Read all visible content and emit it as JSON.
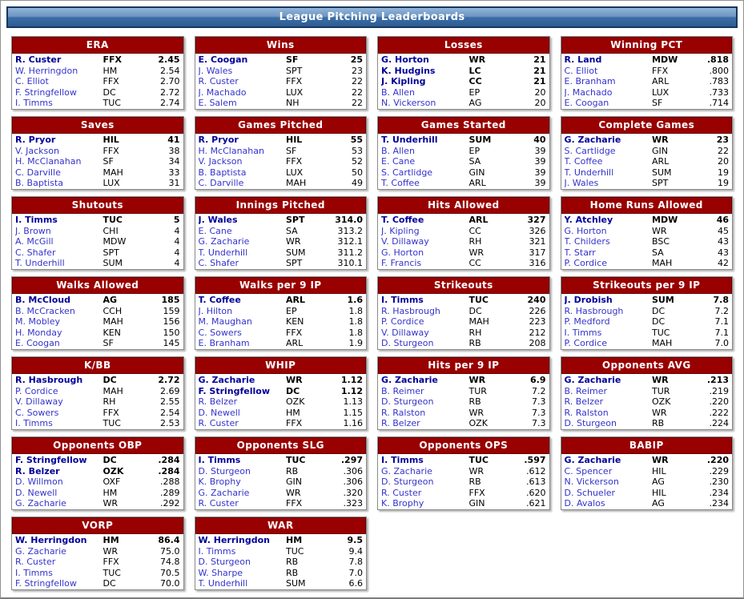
{
  "header": {
    "title": "League Pitching Leaderboards"
  },
  "colors": {
    "panel_header_red": "#990000",
    "titlebar_blue_top": "#93b4d8",
    "titlebar_blue_bottom": "#2d5c92",
    "titlebar_border": "#17375e",
    "player_link_blue": "#3333cc",
    "leader_navy": "#000099",
    "text_black": "#000000",
    "panel_border_gray": "#8a8a8a"
  },
  "boards": [
    {
      "title": "ERA",
      "rows": [
        {
          "player": "R. Custer",
          "team": "FFX",
          "value": "2.45",
          "leader": true
        },
        {
          "player": "W. Herringdon",
          "team": "HM",
          "value": "2.54",
          "leader": false
        },
        {
          "player": "C. Elliot",
          "team": "FFX",
          "value": "2.70",
          "leader": false
        },
        {
          "player": "F. Stringfellow",
          "team": "DC",
          "value": "2.72",
          "leader": false
        },
        {
          "player": "I. Timms",
          "team": "TUC",
          "value": "2.74",
          "leader": false
        }
      ]
    },
    {
      "title": "Wins",
      "rows": [
        {
          "player": "E. Coogan",
          "team": "SF",
          "value": "25",
          "leader": true
        },
        {
          "player": "J. Wales",
          "team": "SPT",
          "value": "23",
          "leader": false
        },
        {
          "player": "R. Custer",
          "team": "FFX",
          "value": "22",
          "leader": false
        },
        {
          "player": "J. Machado",
          "team": "LUX",
          "value": "22",
          "leader": false
        },
        {
          "player": "E. Salem",
          "team": "NH",
          "value": "22",
          "leader": false
        }
      ]
    },
    {
      "title": "Losses",
      "rows": [
        {
          "player": "G. Horton",
          "team": "WR",
          "value": "21",
          "leader": true
        },
        {
          "player": "K. Hudgins",
          "team": "LC",
          "value": "21",
          "leader": true
        },
        {
          "player": "J. Kipling",
          "team": "CC",
          "value": "21",
          "leader": true
        },
        {
          "player": "B. Allen",
          "team": "EP",
          "value": "20",
          "leader": false
        },
        {
          "player": "N. Vickerson",
          "team": "AG",
          "value": "20",
          "leader": false
        }
      ]
    },
    {
      "title": "Winning PCT",
      "rows": [
        {
          "player": "R. Land",
          "team": "MDW",
          "value": ".818",
          "leader": true
        },
        {
          "player": "C. Elliot",
          "team": "FFX",
          "value": ".800",
          "leader": false
        },
        {
          "player": "E. Branham",
          "team": "ARL",
          "value": ".783",
          "leader": false
        },
        {
          "player": "J. Machado",
          "team": "LUX",
          "value": ".733",
          "leader": false
        },
        {
          "player": "E. Coogan",
          "team": "SF",
          "value": ".714",
          "leader": false
        }
      ]
    },
    {
      "title": "Saves",
      "rows": [
        {
          "player": "R. Pryor",
          "team": "HIL",
          "value": "41",
          "leader": true
        },
        {
          "player": "V. Jackson",
          "team": "FFX",
          "value": "38",
          "leader": false
        },
        {
          "player": "H. McClanahan",
          "team": "SF",
          "value": "34",
          "leader": false
        },
        {
          "player": "C. Darville",
          "team": "MAH",
          "value": "33",
          "leader": false
        },
        {
          "player": "B. Baptista",
          "team": "LUX",
          "value": "31",
          "leader": false
        }
      ]
    },
    {
      "title": "Games Pitched",
      "rows": [
        {
          "player": "R. Pryor",
          "team": "HIL",
          "value": "55",
          "leader": true
        },
        {
          "player": "H. McClanahan",
          "team": "SF",
          "value": "53",
          "leader": false
        },
        {
          "player": "V. Jackson",
          "team": "FFX",
          "value": "52",
          "leader": false
        },
        {
          "player": "B. Baptista",
          "team": "LUX",
          "value": "50",
          "leader": false
        },
        {
          "player": "C. Darville",
          "team": "MAH",
          "value": "49",
          "leader": false
        }
      ]
    },
    {
      "title": "Games Started",
      "rows": [
        {
          "player": "T. Underhill",
          "team": "SUM",
          "value": "40",
          "leader": true
        },
        {
          "player": "B. Allen",
          "team": "EP",
          "value": "39",
          "leader": false
        },
        {
          "player": "E. Cane",
          "team": "SA",
          "value": "39",
          "leader": false
        },
        {
          "player": "S. Cartlidge",
          "team": "GIN",
          "value": "39",
          "leader": false
        },
        {
          "player": "T. Coffee",
          "team": "ARL",
          "value": "39",
          "leader": false
        }
      ]
    },
    {
      "title": "Complete Games",
      "rows": [
        {
          "player": "G. Zacharie",
          "team": "WR",
          "value": "23",
          "leader": true
        },
        {
          "player": "S. Cartlidge",
          "team": "GIN",
          "value": "22",
          "leader": false
        },
        {
          "player": "T. Coffee",
          "team": "ARL",
          "value": "20",
          "leader": false
        },
        {
          "player": "T. Underhill",
          "team": "SUM",
          "value": "19",
          "leader": false
        },
        {
          "player": "J. Wales",
          "team": "SPT",
          "value": "19",
          "leader": false
        }
      ]
    },
    {
      "title": "Shutouts",
      "rows": [
        {
          "player": "I. Timms",
          "team": "TUC",
          "value": "5",
          "leader": true
        },
        {
          "player": "J. Brown",
          "team": "CHI",
          "value": "4",
          "leader": false
        },
        {
          "player": "A. McGill",
          "team": "MDW",
          "value": "4",
          "leader": false
        },
        {
          "player": "C. Shafer",
          "team": "SPT",
          "value": "4",
          "leader": false
        },
        {
          "player": "T. Underhill",
          "team": "SUM",
          "value": "4",
          "leader": false
        }
      ]
    },
    {
      "title": "Innings Pitched",
      "rows": [
        {
          "player": "J. Wales",
          "team": "SPT",
          "value": "314.0",
          "leader": true
        },
        {
          "player": "E. Cane",
          "team": "SA",
          "value": "313.2",
          "leader": false
        },
        {
          "player": "G. Zacharie",
          "team": "WR",
          "value": "312.1",
          "leader": false
        },
        {
          "player": "T. Underhill",
          "team": "SUM",
          "value": "311.2",
          "leader": false
        },
        {
          "player": "C. Shafer",
          "team": "SPT",
          "value": "310.1",
          "leader": false
        }
      ]
    },
    {
      "title": "Hits Allowed",
      "rows": [
        {
          "player": "T. Coffee",
          "team": "ARL",
          "value": "327",
          "leader": true
        },
        {
          "player": "J. Kipling",
          "team": "CC",
          "value": "326",
          "leader": false
        },
        {
          "player": "V. Dillaway",
          "team": "RH",
          "value": "321",
          "leader": false
        },
        {
          "player": "G. Horton",
          "team": "WR",
          "value": "317",
          "leader": false
        },
        {
          "player": "F. Francis",
          "team": "CC",
          "value": "316",
          "leader": false
        }
      ]
    },
    {
      "title": "Home Runs Allowed",
      "rows": [
        {
          "player": "Y. Atchley",
          "team": "MDW",
          "value": "46",
          "leader": true
        },
        {
          "player": "G. Horton",
          "team": "WR",
          "value": "45",
          "leader": false
        },
        {
          "player": "T. Childers",
          "team": "BSC",
          "value": "43",
          "leader": false
        },
        {
          "player": "T. Starr",
          "team": "SA",
          "value": "43",
          "leader": false
        },
        {
          "player": "P. Cordice",
          "team": "MAH",
          "value": "42",
          "leader": false
        }
      ]
    },
    {
      "title": "Walks Allowed",
      "rows": [
        {
          "player": "B. McCloud",
          "team": "AG",
          "value": "185",
          "leader": true
        },
        {
          "player": "B. McCracken",
          "team": "CCH",
          "value": "159",
          "leader": false
        },
        {
          "player": "M. Mobley",
          "team": "MAH",
          "value": "156",
          "leader": false
        },
        {
          "player": "H. Monday",
          "team": "KEN",
          "value": "150",
          "leader": false
        },
        {
          "player": "E. Coogan",
          "team": "SF",
          "value": "145",
          "leader": false
        }
      ]
    },
    {
      "title": "Walks per 9 IP",
      "rows": [
        {
          "player": "T. Coffee",
          "team": "ARL",
          "value": "1.6",
          "leader": true
        },
        {
          "player": "J. Hilton",
          "team": "EP",
          "value": "1.8",
          "leader": false
        },
        {
          "player": "M. Maughan",
          "team": "KEN",
          "value": "1.8",
          "leader": false
        },
        {
          "player": "C. Sowers",
          "team": "FFX",
          "value": "1.8",
          "leader": false
        },
        {
          "player": "E. Branham",
          "team": "ARL",
          "value": "1.9",
          "leader": false
        }
      ]
    },
    {
      "title": "Strikeouts",
      "rows": [
        {
          "player": "I. Timms",
          "team": "TUC",
          "value": "240",
          "leader": true
        },
        {
          "player": "R. Hasbrough",
          "team": "DC",
          "value": "226",
          "leader": false
        },
        {
          "player": "P. Cordice",
          "team": "MAH",
          "value": "223",
          "leader": false
        },
        {
          "player": "V. Dillaway",
          "team": "RH",
          "value": "212",
          "leader": false
        },
        {
          "player": "D. Sturgeon",
          "team": "RB",
          "value": "208",
          "leader": false
        }
      ]
    },
    {
      "title": "Strikeouts per 9 IP",
      "rows": [
        {
          "player": "J. Drobish",
          "team": "SUM",
          "value": "7.8",
          "leader": true
        },
        {
          "player": "R. Hasbrough",
          "team": "DC",
          "value": "7.2",
          "leader": false
        },
        {
          "player": "P. Medford",
          "team": "DC",
          "value": "7.1",
          "leader": false
        },
        {
          "player": "I. Timms",
          "team": "TUC",
          "value": "7.1",
          "leader": false
        },
        {
          "player": "P. Cordice",
          "team": "MAH",
          "value": "7.0",
          "leader": false
        }
      ]
    },
    {
      "title": "K/BB",
      "rows": [
        {
          "player": "R. Hasbrough",
          "team": "DC",
          "value": "2.72",
          "leader": true
        },
        {
          "player": "P. Cordice",
          "team": "MAH",
          "value": "2.69",
          "leader": false
        },
        {
          "player": "V. Dillaway",
          "team": "RH",
          "value": "2.55",
          "leader": false
        },
        {
          "player": "C. Sowers",
          "team": "FFX",
          "value": "2.54",
          "leader": false
        },
        {
          "player": "I. Timms",
          "team": "TUC",
          "value": "2.53",
          "leader": false
        }
      ]
    },
    {
      "title": "WHIP",
      "rows": [
        {
          "player": "G. Zacharie",
          "team": "WR",
          "value": "1.12",
          "leader": true
        },
        {
          "player": "F. Stringfellow",
          "team": "DC",
          "value": "1.12",
          "leader": true
        },
        {
          "player": "R. Belzer",
          "team": "OZK",
          "value": "1.13",
          "leader": false
        },
        {
          "player": "D. Newell",
          "team": "HM",
          "value": "1.15",
          "leader": false
        },
        {
          "player": "R. Custer",
          "team": "FFX",
          "value": "1.16",
          "leader": false
        }
      ]
    },
    {
      "title": "Hits per 9 IP",
      "rows": [
        {
          "player": "G. Zacharie",
          "team": "WR",
          "value": "6.9",
          "leader": true
        },
        {
          "player": "B. Reimer",
          "team": "TUR",
          "value": "7.2",
          "leader": false
        },
        {
          "player": "D. Sturgeon",
          "team": "RB",
          "value": "7.3",
          "leader": false
        },
        {
          "player": "R. Ralston",
          "team": "WR",
          "value": "7.3",
          "leader": false
        },
        {
          "player": "R. Belzer",
          "team": "OZK",
          "value": "7.3",
          "leader": false
        }
      ]
    },
    {
      "title": "Opponents AVG",
      "rows": [
        {
          "player": "G. Zacharie",
          "team": "WR",
          "value": ".213",
          "leader": true
        },
        {
          "player": "B. Reimer",
          "team": "TUR",
          "value": ".219",
          "leader": false
        },
        {
          "player": "R. Belzer",
          "team": "OZK",
          "value": ".220",
          "leader": false
        },
        {
          "player": "R. Ralston",
          "team": "WR",
          "value": ".222",
          "leader": false
        },
        {
          "player": "D. Sturgeon",
          "team": "RB",
          "value": ".224",
          "leader": false
        }
      ]
    },
    {
      "title": "Opponents OBP",
      "rows": [
        {
          "player": "F. Stringfellow",
          "team": "DC",
          "value": ".284",
          "leader": true
        },
        {
          "player": "R. Belzer",
          "team": "OZK",
          "value": ".284",
          "leader": true
        },
        {
          "player": "D. Willmon",
          "team": "OXF",
          "value": ".288",
          "leader": false
        },
        {
          "player": "D. Newell",
          "team": "HM",
          "value": ".289",
          "leader": false
        },
        {
          "player": "G. Zacharie",
          "team": "WR",
          "value": ".292",
          "leader": false
        }
      ]
    },
    {
      "title": "Opponents SLG",
      "rows": [
        {
          "player": "I. Timms",
          "team": "TUC",
          "value": ".297",
          "leader": true
        },
        {
          "player": "D. Sturgeon",
          "team": "RB",
          "value": ".306",
          "leader": false
        },
        {
          "player": "K. Brophy",
          "team": "GIN",
          "value": ".306",
          "leader": false
        },
        {
          "player": "G. Zacharie",
          "team": "WR",
          "value": ".320",
          "leader": false
        },
        {
          "player": "R. Custer",
          "team": "FFX",
          "value": ".323",
          "leader": false
        }
      ]
    },
    {
      "title": "Opponents OPS",
      "rows": [
        {
          "player": "I. Timms",
          "team": "TUC",
          "value": ".597",
          "leader": true
        },
        {
          "player": "G. Zacharie",
          "team": "WR",
          "value": ".612",
          "leader": false
        },
        {
          "player": "D. Sturgeon",
          "team": "RB",
          "value": ".613",
          "leader": false
        },
        {
          "player": "R. Custer",
          "team": "FFX",
          "value": ".620",
          "leader": false
        },
        {
          "player": "K. Brophy",
          "team": "GIN",
          "value": ".621",
          "leader": false
        }
      ]
    },
    {
      "title": "BABIP",
      "rows": [
        {
          "player": "G. Zacharie",
          "team": "WR",
          "value": ".220",
          "leader": true
        },
        {
          "player": "C. Spencer",
          "team": "HIL",
          "value": ".229",
          "leader": false
        },
        {
          "player": "N. Vickerson",
          "team": "AG",
          "value": ".230",
          "leader": false
        },
        {
          "player": "D. Schueler",
          "team": "HIL",
          "value": ".234",
          "leader": false
        },
        {
          "player": "D. Avalos",
          "team": "AG",
          "value": ".234",
          "leader": false
        }
      ]
    },
    {
      "title": "VORP",
      "rows": [
        {
          "player": "W. Herringdon",
          "team": "HM",
          "value": "86.4",
          "leader": true
        },
        {
          "player": "G. Zacharie",
          "team": "WR",
          "value": "75.0",
          "leader": false
        },
        {
          "player": "R. Custer",
          "team": "FFX",
          "value": "74.8",
          "leader": false
        },
        {
          "player": "I. Timms",
          "team": "TUC",
          "value": "70.5",
          "leader": false
        },
        {
          "player": "F. Stringfellow",
          "team": "DC",
          "value": "70.0",
          "leader": false
        }
      ]
    },
    {
      "title": "WAR",
      "rows": [
        {
          "player": "W. Herringdon",
          "team": "HM",
          "value": "9.5",
          "leader": true
        },
        {
          "player": "I. Timms",
          "team": "TUC",
          "value": "9.4",
          "leader": false
        },
        {
          "player": "D. Sturgeon",
          "team": "RB",
          "value": "7.8",
          "leader": false
        },
        {
          "player": "W. Sharpe",
          "team": "RB",
          "value": "7.0",
          "leader": false
        },
        {
          "player": "T. Underhill",
          "team": "SUM",
          "value": "6.6",
          "leader": false
        }
      ]
    }
  ]
}
